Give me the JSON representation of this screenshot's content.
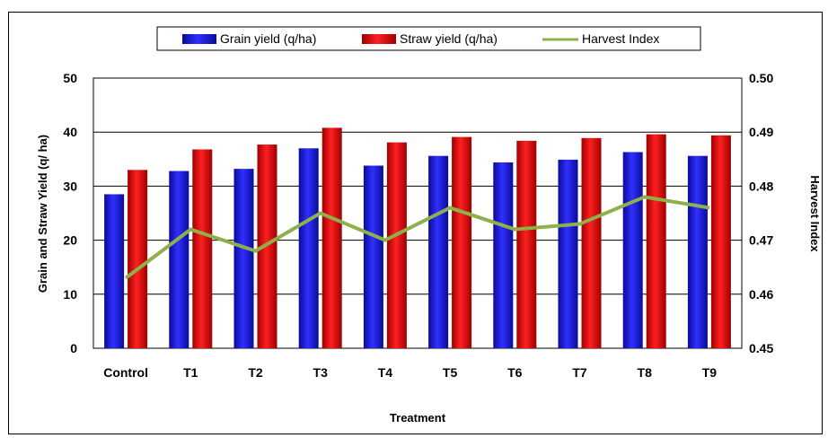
{
  "chart_data": {
    "type": "bar",
    "xlabel": "Treatment",
    "ylabel": "Grain and Straw Yield (q/ ha)",
    "y2label": "Harvest Index",
    "categories": [
      "Control",
      "T1",
      "T2",
      "T3",
      "T4",
      "T5",
      "T6",
      "T7",
      "T8",
      "T9"
    ],
    "ylim": [
      0,
      50
    ],
    "yticks": [
      0,
      10,
      20,
      30,
      40,
      50
    ],
    "y2lim": [
      0.45,
      0.5
    ],
    "y2ticks": [
      "0.45",
      "0.46",
      "0.47",
      "0.48",
      "0.49",
      "0.50"
    ],
    "grid": true,
    "legend_position": "top",
    "series": [
      {
        "name": "Grain yield (q/ha)",
        "kind": "bar",
        "axis": "left",
        "color": "#1f1fe0",
        "values": [
          28.5,
          32.8,
          33.2,
          37.0,
          33.8,
          35.6,
          34.4,
          34.9,
          36.3,
          35.6
        ]
      },
      {
        "name": "Straw yield (q/ha)",
        "kind": "bar",
        "axis": "left",
        "color": "#e01010",
        "values": [
          33.0,
          36.8,
          37.7,
          40.8,
          38.1,
          39.1,
          38.4,
          38.9,
          39.6,
          39.4
        ]
      },
      {
        "name": "Harvest Index",
        "kind": "line",
        "axis": "right",
        "color": "#8db04a",
        "values": [
          0.463,
          0.472,
          0.468,
          0.475,
          0.47,
          0.476,
          0.472,
          0.473,
          0.478,
          0.476
        ]
      }
    ]
  }
}
